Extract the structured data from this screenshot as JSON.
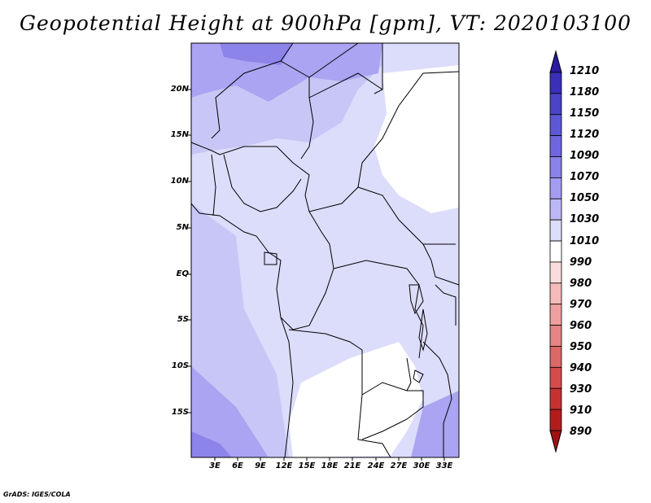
{
  "title": "Geopotential Height at 900hPa [gpm], VT: 2020103100",
  "credit": "GrADS: IGES/COLA",
  "lat_labels": [
    "20N",
    "15N",
    "10N",
    "5N",
    "EQ",
    "5S",
    "10S",
    "15S"
  ],
  "lon_labels": [
    "3E",
    "6E",
    "9E",
    "12E",
    "15E",
    "18E",
    "21E",
    "24E",
    "27E",
    "30E",
    "33E"
  ],
  "colorbar": {
    "levels": [
      "1210",
      "1180",
      "1150",
      "1120",
      "1090",
      "1070",
      "1050",
      "1030",
      "1010",
      "990",
      "980",
      "970",
      "960",
      "950",
      "940",
      "930",
      "910",
      "890"
    ],
    "colors": [
      "#2a1a9e",
      "#3a2fb8",
      "#4b44c8",
      "#5c58d6",
      "#7066e0",
      "#8a82ea",
      "#a49cf0",
      "#bdb8f5",
      "#dcdcfb",
      "#ffffff",
      "#fbdcdc",
      "#f5baba",
      "#eea0a0",
      "#e58484",
      "#dc6868",
      "#d44c4c",
      "#c63232",
      "#b41c1c",
      "#a01010"
    ]
  },
  "map_colors": {
    "lightest": "#dcdcfb",
    "light": "#c8c6f6",
    "medium": "#aaa4f2",
    "dark": "#8d84ea",
    "white": "#ffffff"
  }
}
